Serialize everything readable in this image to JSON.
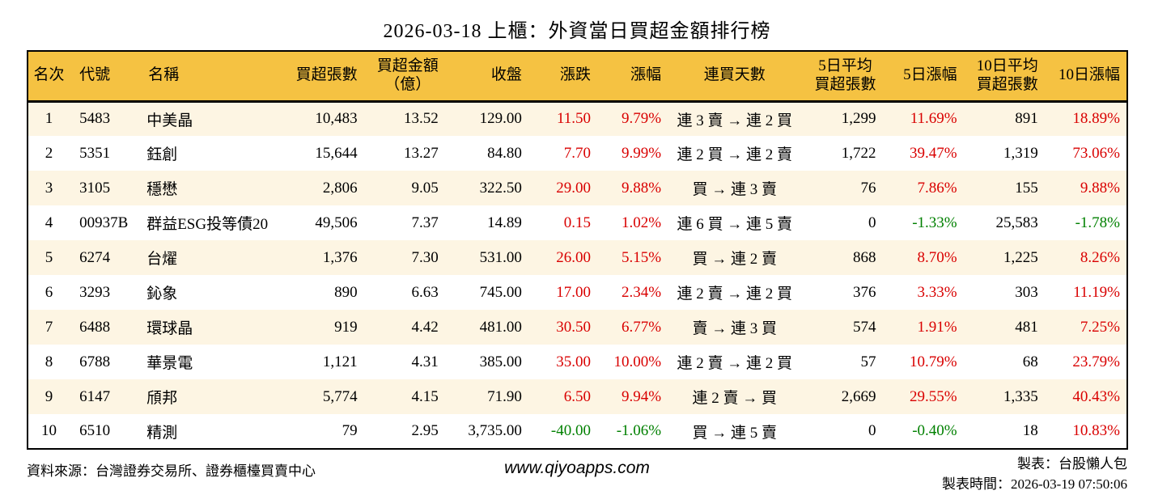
{
  "title": "2026-03-18 上櫃：外資當日買超金額排行榜",
  "colors": {
    "up": "#d90000",
    "down": "#008000",
    "header_bg": "#f5c242",
    "row_stripe_bg": "#fdf5e3",
    "border": "#000000"
  },
  "table": {
    "columns": [
      {
        "key": "rank",
        "label": "名次",
        "signed": false
      },
      {
        "key": "code",
        "label": "代號",
        "signed": false
      },
      {
        "key": "name",
        "label": "名稱",
        "signed": false
      },
      {
        "key": "net_buy_lots",
        "label": "買超張數",
        "signed": false
      },
      {
        "key": "net_buy_amount",
        "label": "買超金額\n（億）",
        "signed": false
      },
      {
        "key": "close",
        "label": "收盤",
        "signed": false
      },
      {
        "key": "change",
        "label": "漲跌",
        "signed": true
      },
      {
        "key": "change_pct",
        "label": "漲幅",
        "signed": true
      },
      {
        "key": "streak",
        "label": "連買天數",
        "signed": false
      },
      {
        "key": "avg5_lots",
        "label": "5日平均\n買超張數",
        "signed": false
      },
      {
        "key": "pct5",
        "label": "5日漲幅",
        "signed": true
      },
      {
        "key": "avg10_lots",
        "label": "10日平均\n買超張數",
        "signed": false
      },
      {
        "key": "pct10",
        "label": "10日漲幅",
        "signed": true
      }
    ],
    "rows": [
      [
        "1",
        "5483",
        "中美晶",
        "10,483",
        "13.52",
        "129.00",
        "11.50",
        "9.79%",
        "連 3 賣 → 連 2 買",
        "1,299",
        "11.69%",
        "891",
        "18.89%"
      ],
      [
        "2",
        "5351",
        "鈺創",
        "15,644",
        "13.27",
        "84.80",
        "7.70",
        "9.99%",
        "連 2 買 → 連 2 賣",
        "1,722",
        "39.47%",
        "1,319",
        "73.06%"
      ],
      [
        "3",
        "3105",
        "穩懋",
        "2,806",
        "9.05",
        "322.50",
        "29.00",
        "9.88%",
        "買 → 連 3 賣",
        "76",
        "7.86%",
        "155",
        "9.88%"
      ],
      [
        "4",
        "00937B",
        "群益ESG投等債20",
        "49,506",
        "7.37",
        "14.89",
        "0.15",
        "1.02%",
        "連 6 買 → 連 5 賣",
        "0",
        "-1.33%",
        "25,583",
        "-1.78%"
      ],
      [
        "5",
        "6274",
        "台燿",
        "1,376",
        "7.30",
        "531.00",
        "26.00",
        "5.15%",
        "買 → 連 2 賣",
        "868",
        "8.70%",
        "1,225",
        "8.26%"
      ],
      [
        "6",
        "3293",
        "鈊象",
        "890",
        "6.63",
        "745.00",
        "17.00",
        "2.34%",
        "連 2 賣 → 連 2 買",
        "376",
        "3.33%",
        "303",
        "11.19%"
      ],
      [
        "7",
        "6488",
        "環球晶",
        "919",
        "4.42",
        "481.00",
        "30.50",
        "6.77%",
        "賣 → 連 3 買",
        "574",
        "1.91%",
        "481",
        "7.25%"
      ],
      [
        "8",
        "6788",
        "華景電",
        "1,121",
        "4.31",
        "385.00",
        "35.00",
        "10.00%",
        "連 2 賣 → 連 2 買",
        "57",
        "10.79%",
        "68",
        "23.79%"
      ],
      [
        "9",
        "6147",
        "頎邦",
        "5,774",
        "4.15",
        "71.90",
        "6.50",
        "9.94%",
        "連 2 賣 → 買",
        "2,669",
        "29.55%",
        "1,335",
        "40.43%"
      ],
      [
        "10",
        "6510",
        "精測",
        "79",
        "2.95",
        "3,735.00",
        "-40.00",
        "-1.06%",
        "買 → 連 5 賣",
        "0",
        "-0.40%",
        "18",
        "10.83%"
      ]
    ]
  },
  "footer": {
    "source": "資料來源：台灣證券交易所、證券櫃檯買賣中心",
    "website": "www.qiyoapps.com",
    "maker": "製表：台股懶人包",
    "made_time": "製表時間：2026-03-19 07:50:06"
  }
}
